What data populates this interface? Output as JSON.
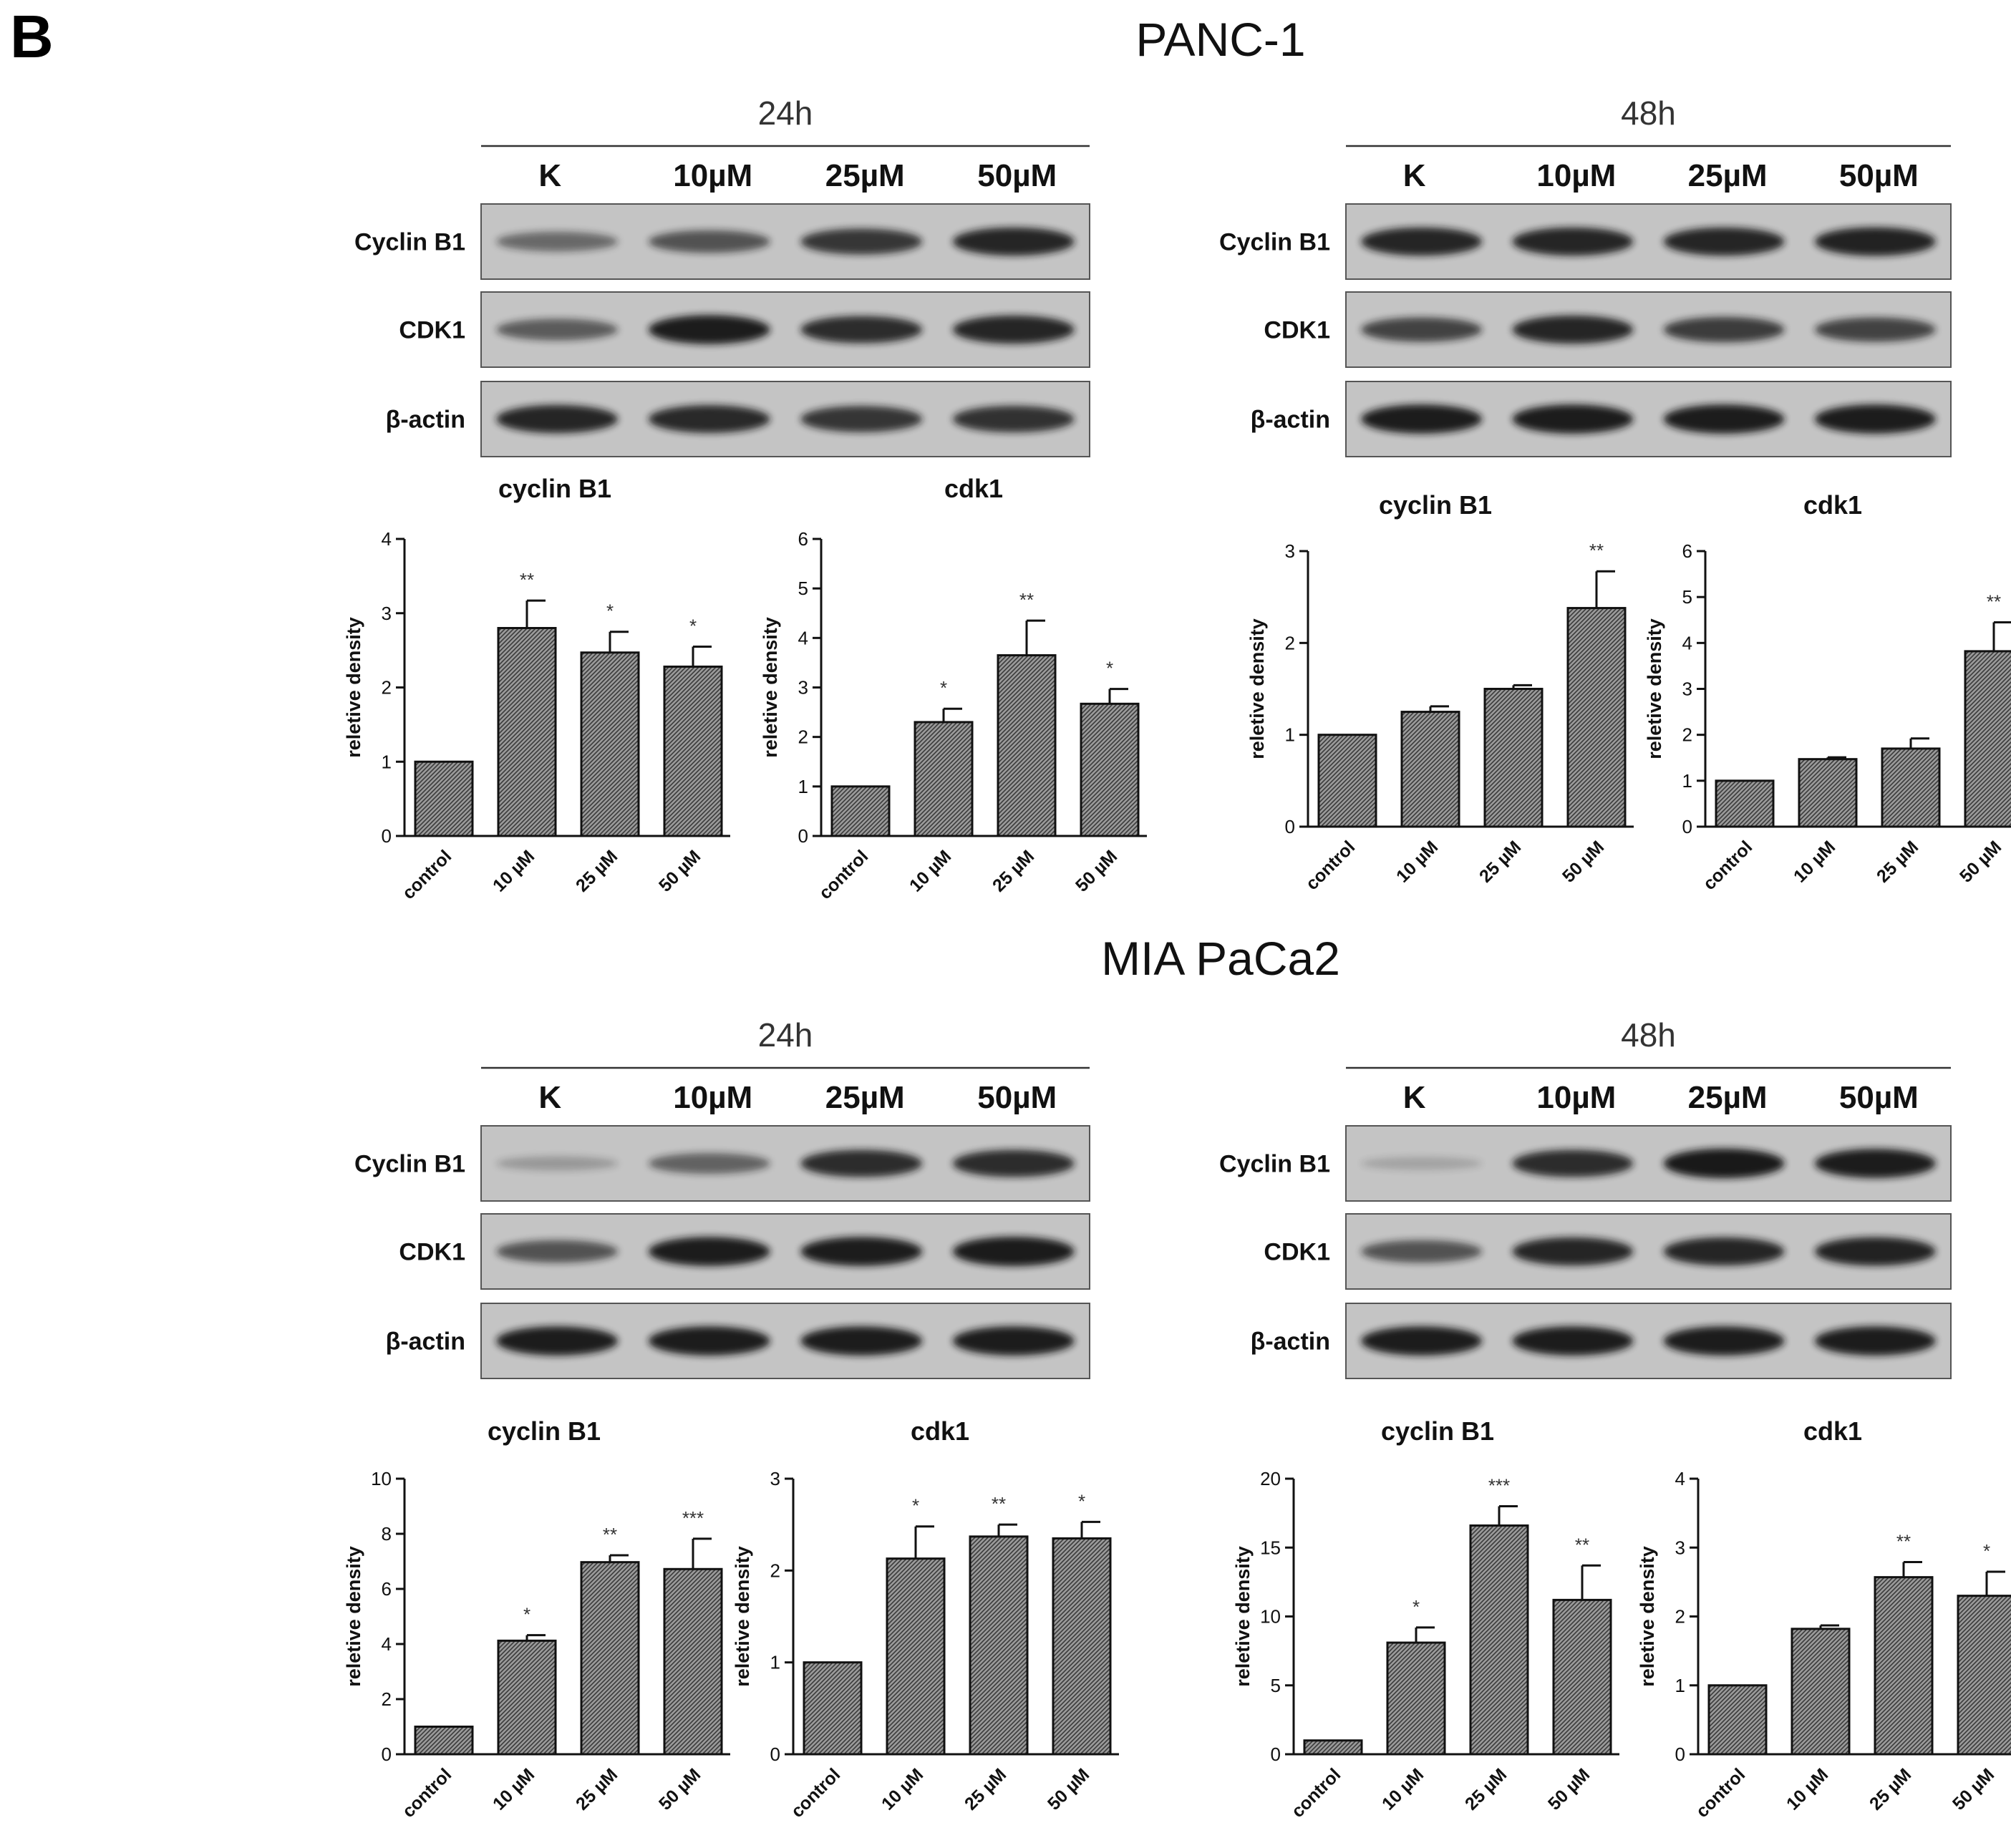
{
  "figure": {
    "panel_letter": "B",
    "colors": {
      "bar_fill": "#9a9a9a",
      "bar_hatch": "#3a3a3a",
      "axis": "#111111",
      "blot_bg": "#c4c4c4",
      "band": "#151515"
    },
    "sections": [
      {
        "cell_line": "PANC-1",
        "blots": [
          {
            "time": "24h",
            "lanes": [
              "K",
              "10µM",
              "25µM",
              "50µM"
            ],
            "rows": [
              "Cyclin B1",
              "CDK1",
              "β-actin"
            ],
            "band_intensity": [
              [
                0.45,
                0.6,
                0.78,
                0.9
              ],
              [
                0.55,
                0.95,
                0.85,
                0.9
              ],
              [
                0.9,
                0.88,
                0.8,
                0.82
              ]
            ]
          },
          {
            "time": "48h",
            "lanes": [
              "K",
              "10µM",
              "25µM",
              "50µM"
            ],
            "rows": [
              "Cyclin B1",
              "CDK1",
              "β-actin"
            ],
            "band_intensity": [
              [
                0.9,
                0.9,
                0.9,
                0.92
              ],
              [
                0.7,
                0.9,
                0.75,
                0.7
              ],
              [
                0.95,
                0.95,
                0.95,
                0.95
              ]
            ]
          }
        ]
      },
      {
        "cell_line": "MIA PaCa2",
        "blots": [
          {
            "time": "24h",
            "lanes": [
              "K",
              "10µM",
              "25µM",
              "50µM"
            ],
            "rows": [
              "Cyclin B1",
              "CDK1",
              "β-actin"
            ],
            "band_intensity": [
              [
                0.15,
                0.5,
                0.85,
                0.85
              ],
              [
                0.6,
                0.95,
                0.95,
                0.97
              ],
              [
                0.95,
                0.95,
                0.95,
                0.95
              ]
            ]
          },
          {
            "time": "48h",
            "lanes": [
              "K",
              "10µM",
              "25µM",
              "50µM"
            ],
            "rows": [
              "Cyclin B1",
              "CDK1",
              "β-actin"
            ],
            "band_intensity": [
              [
                0.08,
                0.85,
                0.98,
                0.95
              ],
              [
                0.6,
                0.9,
                0.9,
                0.92
              ],
              [
                0.95,
                0.95,
                0.95,
                0.95
              ]
            ]
          }
        ]
      }
    ]
  },
  "chart_data": [
    {
      "type": "bar",
      "title": "cyclin B1",
      "ylabel": "reletive density",
      "categories": [
        "control",
        "10 µM",
        "25 µM",
        "50 µM"
      ],
      "values": [
        1.0,
        2.8,
        2.47,
        2.28
      ],
      "errors": [
        0,
        0.37,
        0.28,
        0.27
      ],
      "significance": [
        "",
        "**",
        "*",
        "*"
      ],
      "ylim": [
        0,
        4
      ],
      "yticks": [
        0,
        1,
        2,
        3,
        4
      ]
    },
    {
      "type": "bar",
      "title": "cdk1",
      "ylabel": "reletive density",
      "categories": [
        "control",
        "10 µM",
        "25 µM",
        "50 µM"
      ],
      "values": [
        1.0,
        2.3,
        3.65,
        2.67
      ],
      "errors": [
        0,
        0.27,
        0.7,
        0.3
      ],
      "significance": [
        "",
        "*",
        "**",
        "*"
      ],
      "ylim": [
        0,
        6
      ],
      "yticks": [
        0,
        1,
        2,
        3,
        4,
        5,
        6
      ]
    },
    {
      "type": "bar",
      "title": "cyclin B1",
      "ylabel": "reletive density",
      "categories": [
        "control",
        "10 µM",
        "25 µM",
        "50 µM"
      ],
      "values": [
        1.0,
        1.25,
        1.5,
        2.38
      ],
      "errors": [
        0,
        0.06,
        0.04,
        0.4
      ],
      "significance": [
        "",
        "",
        "",
        "**"
      ],
      "ylim": [
        0,
        3
      ],
      "yticks": [
        0,
        1,
        2,
        3
      ]
    },
    {
      "type": "bar",
      "title": "cdk1",
      "ylabel": "reletive density",
      "categories": [
        "control",
        "10 µM",
        "25 µM",
        "50 µM"
      ],
      "values": [
        1.0,
        1.47,
        1.7,
        3.82
      ],
      "errors": [
        0,
        0.04,
        0.22,
        0.63
      ],
      "significance": [
        "",
        "",
        "",
        "**"
      ],
      "ylim": [
        0,
        6
      ],
      "yticks": [
        0,
        1,
        2,
        3,
        4,
        5,
        6
      ]
    },
    {
      "type": "bar",
      "title": "cyclin B1",
      "ylabel": "reletive density",
      "categories": [
        "control",
        "10 µM",
        "25 µM",
        "50 µM"
      ],
      "values": [
        1.0,
        4.12,
        6.97,
        6.72
      ],
      "errors": [
        0,
        0.2,
        0.25,
        1.1
      ],
      "significance": [
        "",
        "*",
        "**",
        "***"
      ],
      "ylim": [
        0,
        10
      ],
      "yticks": [
        0,
        2,
        4,
        6,
        8,
        10
      ]
    },
    {
      "type": "bar",
      "title": "cdk1",
      "ylabel": "reletive density",
      "categories": [
        "control",
        "10 µM",
        "25 µM",
        "50 µM"
      ],
      "values": [
        1.0,
        2.13,
        2.37,
        2.35
      ],
      "errors": [
        0,
        0.35,
        0.13,
        0.18
      ],
      "significance": [
        "",
        "*",
        "**",
        "*"
      ],
      "ylim": [
        0,
        3
      ],
      "yticks": [
        0,
        1,
        2,
        3
      ]
    },
    {
      "type": "bar",
      "title": "cyclin B1",
      "ylabel": "reletive density",
      "categories": [
        "control",
        "10 µM",
        "25 µM",
        "50 µM"
      ],
      "values": [
        1.0,
        8.1,
        16.6,
        11.2
      ],
      "errors": [
        0,
        1.1,
        1.4,
        2.5
      ],
      "significance": [
        "",
        "*",
        "***",
        "**"
      ],
      "ylim": [
        0,
        20
      ],
      "yticks": [
        0,
        5,
        10,
        15,
        20
      ]
    },
    {
      "type": "bar",
      "title": "cdk1",
      "ylabel": "reletive density",
      "categories": [
        "control",
        "10 µM",
        "25 µM",
        "50 µM"
      ],
      "values": [
        1.0,
        1.82,
        2.57,
        2.3
      ],
      "errors": [
        0,
        0.05,
        0.22,
        0.35
      ],
      "significance": [
        "",
        "",
        "**",
        "*"
      ],
      "ylim": [
        0,
        4
      ],
      "yticks": [
        0,
        1,
        2,
        3,
        4
      ]
    }
  ]
}
